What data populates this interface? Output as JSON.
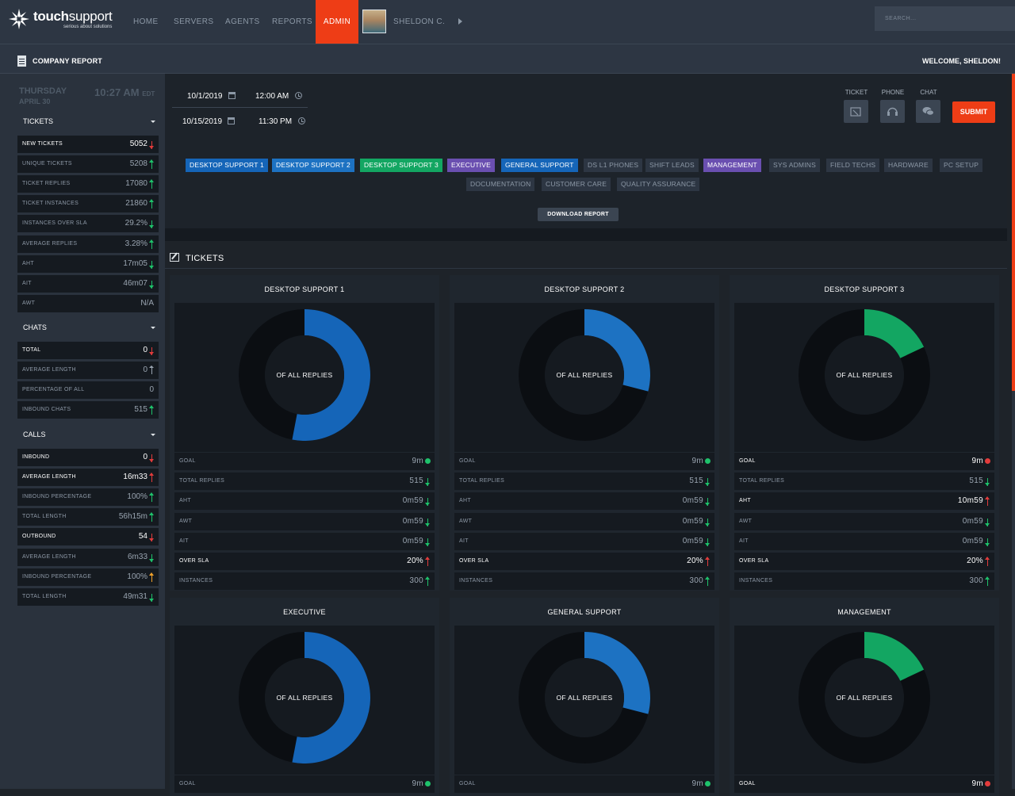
{
  "brand": {
    "name_bold": "touch",
    "name_light": "support",
    "tagline": "serious about solutions"
  },
  "nav": {
    "items": [
      "HOME",
      "SERVERS",
      "AGENTS",
      "REPORTS",
      "ADMIN"
    ],
    "active": "ADMIN",
    "user": "SHELDON C.",
    "search_placeholder": "SEARCH..."
  },
  "subbar": {
    "title": "COMPANY REPORT",
    "welcome": "WELCOME, SHELDON!"
  },
  "sidebar": {
    "day": "THURSDAY",
    "date": "APRIL 30",
    "time": "10:27 AM",
    "tz": "EDT",
    "sections": [
      {
        "title": "TICKETS",
        "rows": [
          {
            "label": "NEW TICKETS",
            "value": "5052",
            "trend": "down",
            "color": "red",
            "bright": true
          },
          {
            "label": "UNIQUE TICKETS",
            "value": "5208",
            "trend": "up",
            "color": "green"
          },
          {
            "label": "TICKET REPLIES",
            "value": "17080",
            "trend": "up",
            "color": "green"
          },
          {
            "label": "TICKET INSTANCES",
            "value": "21860",
            "trend": "up",
            "color": "green"
          },
          {
            "label": "INSTANCES OVER SLA",
            "value": "29.2%",
            "trend": "down",
            "color": "green"
          },
          {
            "label": "AVERAGE REPLIES",
            "value": "3.28%",
            "trend": "up",
            "color": "green"
          },
          {
            "label": "AHT",
            "value": "17m05",
            "trend": "down",
            "color": "green"
          },
          {
            "label": "AIT",
            "value": "46m07",
            "trend": "down",
            "color": "green"
          },
          {
            "label": "AWT",
            "value": "N/A",
            "trend": "none"
          }
        ]
      },
      {
        "title": "CHATS",
        "rows": [
          {
            "label": "TOTAL",
            "value": "0",
            "trend": "down",
            "color": "red",
            "bright": true
          },
          {
            "label": "AVERAGE LENGTH",
            "value": "0",
            "trend": "updown",
            "color": "gray"
          },
          {
            "label": "PERCENTAGE OF ALL",
            "value": "0",
            "trend": "none"
          },
          {
            "label": "INBOUND CHATS",
            "value": "515",
            "trend": "up",
            "color": "green"
          }
        ]
      },
      {
        "title": "CALLS",
        "rows": [
          {
            "label": "INBOUND",
            "value": "0",
            "trend": "down",
            "color": "red",
            "bright": true
          },
          {
            "label": "AVERAGE LENGTH",
            "value": "16m33",
            "trend": "up",
            "color": "red",
            "bright": true
          },
          {
            "label": "INBOUND PERCENTAGE",
            "value": "100%",
            "trend": "up",
            "color": "green"
          },
          {
            "label": "TOTAL LENGTH",
            "value": "56h15m",
            "trend": "up",
            "color": "green"
          },
          {
            "label": "OUTBOUND",
            "value": "54",
            "trend": "down",
            "color": "red",
            "bright": true
          },
          {
            "label": "AVERAGE LENGTH",
            "value": "6m33",
            "trend": "down",
            "color": "green"
          },
          {
            "label": "INBOUND PERCENTAGE",
            "value": "100%",
            "trend": "up",
            "color": "orange"
          },
          {
            "label": "TOTAL LENGTH",
            "value": "49m31",
            "trend": "down",
            "color": "green"
          }
        ]
      }
    ]
  },
  "filter": {
    "start_date": "10/1/2019",
    "start_time": "12:00 AM",
    "end_date": "10/15/2019",
    "end_time": "11:30 PM",
    "media": [
      {
        "label": "TICKET",
        "icon": "ticket-icon"
      },
      {
        "label": "PHONE",
        "icon": "headset-icon"
      },
      {
        "label": "CHAT",
        "icon": "chat-bubbles-icon"
      }
    ],
    "submit": "SUBMIT",
    "groups_row1": [
      {
        "label": "DESKTOP SUPPORT 1",
        "color": "#1565b8"
      },
      {
        "label": "DESKTOP SUPPORT 2",
        "color": "#1d72c2"
      },
      {
        "label": "DESKTOP SUPPORT 3",
        "color": "#13a662"
      },
      {
        "label": "EXECUTIVE",
        "color": "#6a4fb0"
      },
      {
        "label": "GENERAL SUPPORT",
        "color": "#1565b8"
      },
      {
        "label": "DS L1 PHONES",
        "color": ""
      },
      {
        "label": "SHIFT LEADS",
        "color": ""
      },
      {
        "label": "MANAGEMENT",
        "color": "#6a4fb0"
      },
      {
        "label": "SYS ADMINS",
        "color": ""
      },
      {
        "label": "FIELD TECHS",
        "color": ""
      },
      {
        "label": "HARDWARE",
        "color": ""
      },
      {
        "label": "PC SETUP",
        "color": ""
      }
    ],
    "groups_row2": [
      {
        "label": "DOCUMENTATION",
        "color": ""
      },
      {
        "label": "CUSTOMER CARE",
        "color": ""
      },
      {
        "label": "QUALITY ASSURANCE",
        "color": ""
      }
    ],
    "download": "DOWNLOAD REPORT"
  },
  "tickets_heading": "TICKETS",
  "cards": [
    {
      "title": "DESKTOP SUPPORT 1",
      "fraction": 0.53,
      "color": "#1565b8",
      "center": "OF ALL REPLIES",
      "rows": [
        {
          "label": "GOAL",
          "value": "9m",
          "dot": "#1ec26b"
        },
        {
          "label": "TOTAL REPLIES",
          "value": "515",
          "trend": "down",
          "color": "green"
        },
        {
          "label": "AHT",
          "value": "0m59",
          "trend": "down",
          "color": "green"
        },
        {
          "label": "AWT",
          "value": "0m59",
          "trend": "down",
          "color": "green"
        },
        {
          "label": "AIT",
          "value": "0m59",
          "trend": "down",
          "color": "green"
        },
        {
          "label": "OVER SLA",
          "value": "20%",
          "trend": "up",
          "color": "red",
          "bright": true
        },
        {
          "label": "INSTANCES",
          "value": "300",
          "trend": "up",
          "color": "green"
        }
      ]
    },
    {
      "title": "DESKTOP SUPPORT 2",
      "fraction": 0.29,
      "color": "#1d72c2",
      "center": "OF ALL REPLIES",
      "rows": [
        {
          "label": "GOAL",
          "value": "9m",
          "dot": "#1ec26b"
        },
        {
          "label": "TOTAL REPLIES",
          "value": "515",
          "trend": "down",
          "color": "green"
        },
        {
          "label": "AHT",
          "value": "0m59",
          "trend": "down",
          "color": "green"
        },
        {
          "label": "AWT",
          "value": "0m59",
          "trend": "down",
          "color": "green"
        },
        {
          "label": "AIT",
          "value": "0m59",
          "trend": "down",
          "color": "green"
        },
        {
          "label": "OVER SLA",
          "value": "20%",
          "trend": "up",
          "color": "red",
          "bright": true
        },
        {
          "label": "INSTANCES",
          "value": "300",
          "trend": "up",
          "color": "green"
        }
      ]
    },
    {
      "title": "DESKTOP SUPPORT 3",
      "fraction": 0.18,
      "color": "#13a662",
      "center": "OF ALL REPLIES",
      "rows": [
        {
          "label": "GOAL",
          "value": "9m",
          "dot": "#e23b3b",
          "bright": true
        },
        {
          "label": "TOTAL REPLIES",
          "value": "515",
          "trend": "down",
          "color": "green"
        },
        {
          "label": "AHT",
          "value": "10m59",
          "trend": "up",
          "color": "red",
          "bright": true
        },
        {
          "label": "AWT",
          "value": "0m59",
          "trend": "down",
          "color": "green"
        },
        {
          "label": "AIT",
          "value": "0m59",
          "trend": "down",
          "color": "green"
        },
        {
          "label": "OVER SLA",
          "value": "20%",
          "trend": "up",
          "color": "red",
          "bright": true
        },
        {
          "label": "INSTANCES",
          "value": "300",
          "trend": "up",
          "color": "green"
        }
      ]
    },
    {
      "title": "EXECUTIVE",
      "fraction": 0.53,
      "color": "#1565b8",
      "center": "OF ALL REPLIES",
      "rows": [
        {
          "label": "GOAL",
          "value": "9m",
          "dot": "#1ec26b"
        }
      ]
    },
    {
      "title": "GENERAL SUPPORT",
      "fraction": 0.29,
      "color": "#1d72c2",
      "center": "OF ALL REPLIES",
      "rows": [
        {
          "label": "GOAL",
          "value": "9m",
          "dot": "#1ec26b"
        }
      ]
    },
    {
      "title": "MANAGEMENT",
      "fraction": 0.18,
      "color": "#13a662",
      "center": "OF ALL REPLIES",
      "rows": [
        {
          "label": "GOAL",
          "value": "9m",
          "dot": "#e23b3b",
          "bright": true
        }
      ]
    }
  ]
}
